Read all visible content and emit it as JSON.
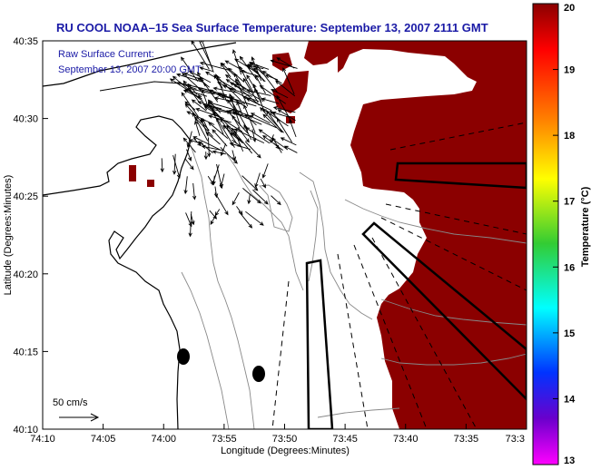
{
  "title": "RU COOL  NOAA–15  Sea Surface Temperature:  September 13, 2007 2111 GMT",
  "inset_line1": "Raw Surface Current:",
  "inset_line2": "September 13, 2007 20:00 GMT",
  "scale_label": "50 cm/s",
  "x_axis_label": "Longitude (Degrees:Minutes)",
  "y_axis_label": "Latitude (Degrees:Minutes)",
  "x_ticks": [
    "74:10",
    "74:05",
    "74:00",
    "73:55",
    "73:50",
    "73:45",
    "73:40",
    "73:35",
    "73:3"
  ],
  "y_ticks": [
    "40:35",
    "40:30",
    "40:25",
    "40:20",
    "40:15",
    "40:10"
  ],
  "colorbar": {
    "label": "Temperature (°C)",
    "ticks": [
      "20",
      "19",
      "18",
      "17",
      "16",
      "15",
      "14",
      "13"
    ],
    "min": 13,
    "max": 20
  },
  "colors": {
    "title_text": "#1a1aa6",
    "land": "#ffffff",
    "sst_hot": "#8b0000",
    "contour": "#888888"
  }
}
